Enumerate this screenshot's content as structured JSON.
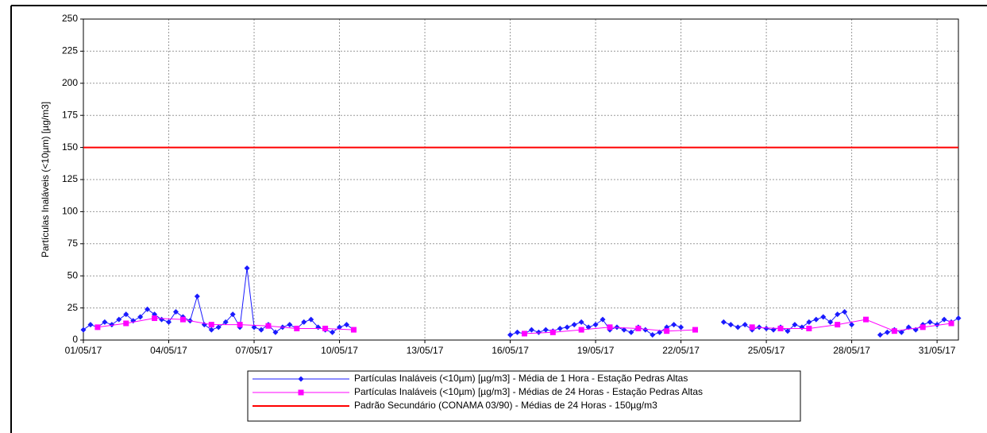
{
  "chart_data": {
    "type": "line",
    "ylabel": "Partículas Inaláveis (<10µm) [µg/m3]",
    "xlim": [
      1,
      31.75
    ],
    "xticks": [
      {
        "value": 1,
        "label": "01/05/17"
      },
      {
        "value": 4,
        "label": "04/05/17"
      },
      {
        "value": 7,
        "label": "07/05/17"
      },
      {
        "value": 10,
        "label": "10/05/17"
      },
      {
        "value": 13,
        "label": "13/05/17"
      },
      {
        "value": 16,
        "label": "16/05/17"
      },
      {
        "value": 19,
        "label": "19/05/17"
      },
      {
        "value": 22,
        "label": "22/05/17"
      },
      {
        "value": 25,
        "label": "25/05/17"
      },
      {
        "value": 28,
        "label": "28/05/17"
      },
      {
        "value": 31,
        "label": "31/05/17"
      }
    ],
    "ylim": [
      0,
      250
    ],
    "yticks": [
      0,
      25,
      50,
      75,
      100,
      125,
      150,
      175,
      200,
      225,
      250
    ],
    "grid": true,
    "legend": "bottom",
    "series": [
      {
        "name": "Partículas Inaláveis (<10µm) [µg/m3] - Média de 1 Hora - Estação Pedras Altas",
        "color": "#1a1aff",
        "marker": "diamond",
        "x": [
          1,
          1.25,
          1.5,
          1.75,
          2,
          2.25,
          2.5,
          2.75,
          3,
          3.25,
          3.5,
          3.75,
          4,
          4.25,
          4.5,
          4.75,
          5,
          5.25,
          5.5,
          5.75,
          6,
          6.25,
          6.5,
          6.75,
          7,
          7.25,
          7.5,
          7.75,
          8,
          8.25,
          8.5,
          8.75,
          9,
          9.25,
          9.5,
          9.75,
          10,
          10.25,
          10.5,
          10.75,
          11,
          11.25,
          11.5,
          11.75,
          12,
          12.25,
          12.5,
          12.75,
          13,
          13.25,
          13.5,
          13.75,
          14,
          14.25,
          14.5,
          14.75,
          15,
          15.25,
          15.5,
          15.75,
          16,
          16.25,
          16.5,
          16.75,
          17,
          17.25,
          17.5,
          17.75,
          18,
          18.25,
          18.5,
          18.75,
          19,
          19.25,
          19.5,
          19.75,
          20,
          20.25,
          20.5,
          20.75,
          21,
          21.25,
          21.5,
          21.75,
          22,
          22.25,
          22.5,
          22.75,
          23,
          23.25,
          23.5,
          23.75,
          24,
          24.25,
          24.5,
          24.75,
          25,
          25.25,
          25.5,
          25.75,
          26,
          26.25,
          26.5,
          26.75,
          27,
          27.25,
          27.5,
          27.75,
          28,
          28.25,
          28.5,
          28.75,
          29,
          29.25,
          29.5,
          29.75,
          30,
          30.25,
          30.5,
          30.75,
          31,
          31.25,
          31.5,
          31.75
        ],
        "values": [
          8,
          12,
          10,
          14,
          12,
          16,
          20,
          15,
          18,
          24,
          20,
          16,
          14,
          22,
          18,
          15,
          34,
          12,
          8,
          10,
          14,
          20,
          10,
          56,
          10,
          8,
          12,
          6,
          10,
          12,
          9,
          14,
          16,
          10,
          8,
          6,
          10,
          12,
          8,
          null,
          null,
          null,
          null,
          null,
          null,
          null,
          null,
          null,
          null,
          null,
          null,
          null,
          null,
          null,
          null,
          null,
          null,
          null,
          null,
          null,
          4,
          6,
          5,
          8,
          6,
          8,
          7,
          9,
          10,
          12,
          14,
          10,
          12,
          16,
          8,
          10,
          8,
          6,
          10,
          8,
          4,
          6,
          10,
          12,
          10,
          null,
          null,
          null,
          null,
          null,
          14,
          12,
          10,
          12,
          8,
          10,
          9,
          8,
          10,
          7,
          12,
          10,
          14,
          16,
          18,
          14,
          20,
          22,
          12,
          null,
          null,
          null,
          4,
          6,
          8,
          6,
          10,
          8,
          12,
          14,
          12,
          16,
          14,
          17
        ]
      },
      {
        "name": "Partículas Inaláveis (<10µm) [µg/m3] - Médias de 24 Horas - Estação Pedras Altas",
        "color": "#ff00ff",
        "marker": "square",
        "x": [
          1.5,
          2.5,
          3.5,
          4.5,
          5.5,
          6.5,
          7.5,
          8.5,
          9.5,
          10.5,
          11.5,
          12.5,
          13.5,
          14.5,
          15.5,
          16.5,
          17.5,
          18.5,
          19.5,
          20.5,
          21.5,
          22.5,
          23.5,
          24.5,
          25.5,
          26.5,
          27.5,
          28.5,
          29.5,
          30.5,
          31.5
        ],
        "values": [
          10,
          13,
          17,
          16,
          12,
          12,
          11,
          9,
          9,
          8,
          null,
          null,
          null,
          null,
          null,
          5,
          6,
          8,
          10,
          9,
          7,
          8,
          null,
          10,
          9,
          9,
          12,
          16,
          7,
          10,
          13
        ]
      },
      {
        "name": "Padrão Secundário (CONAMA 03/90) - Médias de 24 Horas - 150µg/m3",
        "color": "#ff0000",
        "marker": "none",
        "x": [
          1,
          31.75
        ],
        "values": [
          150,
          150
        ]
      }
    ]
  }
}
